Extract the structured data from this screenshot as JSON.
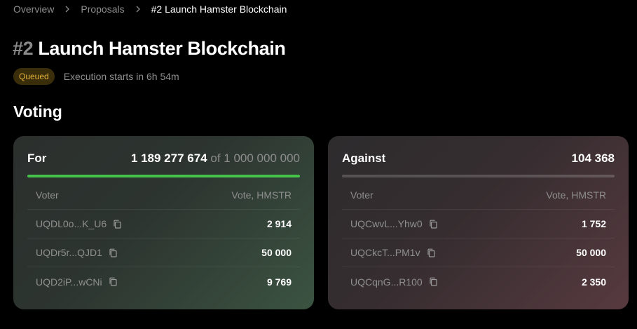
{
  "breadcrumb": {
    "items": [
      "Overview",
      "Proposals",
      "#2 Launch Hamster Blockchain"
    ]
  },
  "proposal": {
    "number": "#2",
    "name": "Launch Hamster Blockchain",
    "status_badge": "Queued",
    "execution_text": "Execution starts in 6h 54m"
  },
  "voting": {
    "section_title": "Voting",
    "for": {
      "label": "For",
      "total": "1 189 277 674",
      "of_word": "of",
      "quorum": "1 000 000 000",
      "progress_fraction": 1.0,
      "columns": {
        "voter": "Voter",
        "vote": "Vote, HMSTR"
      },
      "rows": [
        {
          "voter": "UQDL0o...K_U6",
          "vote": "2 914"
        },
        {
          "voter": "UQDr5r...QJD1",
          "vote": "50 000"
        },
        {
          "voter": "UQD2iP...wCNi",
          "vote": "9 769"
        }
      ]
    },
    "against": {
      "label": "Against",
      "total": "104 368",
      "progress_fraction": 0.0,
      "columns": {
        "voter": "Voter",
        "vote": "Vote, HMSTR"
      },
      "rows": [
        {
          "voter": "UQCwvL...Yhw0",
          "vote": "1 752"
        },
        {
          "voter": "UQCkcT...PM1v",
          "vote": "50 000"
        },
        {
          "voter": "UQCqnG...R100",
          "vote": "2 350"
        }
      ]
    }
  },
  "colors": {
    "for_accent": "#43c349",
    "badge_text": "#e3b23c",
    "badge_bg": "#3a2e0a"
  },
  "icons": {
    "separator": "chevron-right-icon",
    "copy": "copy-icon"
  }
}
